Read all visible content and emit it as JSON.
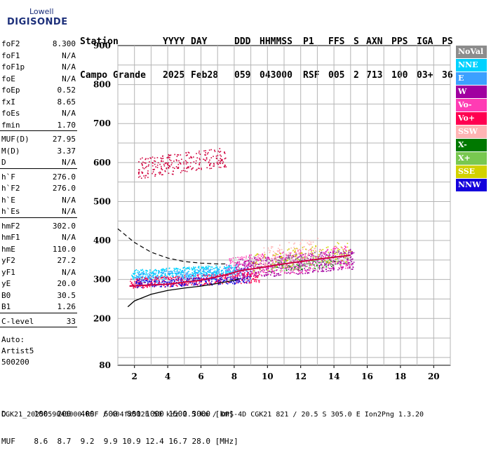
{
  "logo": {
    "line1": "Lowell",
    "line2": "DIGISONDE"
  },
  "header": {
    "labels": [
      "Station",
      "YYYY",
      "DAY",
      "DDD",
      "HHMMSS",
      "P1",
      "FFS",
      "S",
      "AXN",
      "PPS",
      "IGA",
      "PS"
    ],
    "values": [
      "Campo Grande",
      "2025",
      "Feb28",
      "059",
      "043000",
      "RSF",
      "005",
      "2",
      "713",
      "100",
      "03+",
      "36"
    ]
  },
  "params": [
    {
      "k": "foF2",
      "v": "8.300"
    },
    {
      "k": "foF1",
      "v": "N/A"
    },
    {
      "k": "foF1p",
      "v": "N/A"
    },
    {
      "k": "foE",
      "v": "N/A"
    },
    {
      "k": "foEp",
      "v": "0.52"
    },
    {
      "k": "fxI",
      "v": "8.65"
    },
    {
      "k": "foEs",
      "v": "N/A"
    },
    {
      "k": "fmin",
      "v": "1.70"
    },
    {
      "k": "MUF(D)",
      "v": "27.95"
    },
    {
      "k": "M(D)",
      "v": "3.37"
    },
    {
      "k": "D",
      "v": "N/A"
    },
    {
      "k": "h`F",
      "v": "276.0"
    },
    {
      "k": "h`F2",
      "v": "276.0"
    },
    {
      "k": "h`E",
      "v": "N/A"
    },
    {
      "k": "h`Es",
      "v": "N/A"
    },
    {
      "k": "hmF2",
      "v": "302.0"
    },
    {
      "k": "hmF1",
      "v": "N/A"
    },
    {
      "k": "hmE",
      "v": "110.0"
    },
    {
      "k": "yF2",
      "v": "27.2"
    },
    {
      "k": "yF1",
      "v": "N/A"
    },
    {
      "k": "yE",
      "v": "20.0"
    },
    {
      "k": "B0",
      "v": "30.5"
    },
    {
      "k": "B1",
      "v": "1.26"
    },
    {
      "k": "C-level",
      "v": "33"
    }
  ],
  "scaling": {
    "label": "Auto:",
    "name": "Artist5",
    "version": "500200"
  },
  "legend": [
    {
      "name": "NoVal",
      "color": "#8c8c8c"
    },
    {
      "name": "NNE",
      "color": "#00d2ff"
    },
    {
      "name": "E",
      "color": "#3ca0ff"
    },
    {
      "name": "W",
      "color": "#a000a0"
    },
    {
      "name": "Vo-",
      "color": "#ff3cb4"
    },
    {
      "name": "Vo+",
      "color": "#ff0050"
    },
    {
      "name": "SSW",
      "color": "#ffb4b4"
    },
    {
      "name": "X-",
      "color": "#007800"
    },
    {
      "name": "X+",
      "color": "#78c850"
    },
    {
      "name": "SSE",
      "color": "#d2d200"
    },
    {
      "name": "NNW",
      "color": "#1400dc"
    }
  ],
  "muf_table": {
    "d_label": "D",
    "d_values": [
      "100",
      "200",
      "400",
      "600",
      "800",
      "1000",
      "1500",
      "3000"
    ],
    "d_unit": "[km]",
    "muf_label": "MUF",
    "muf_values": [
      "8.6",
      "8.7",
      "9.2",
      "9.9",
      "10.9",
      "12.4",
      "16.7",
      "28.0"
    ],
    "muf_unit": "[MHz]"
  },
  "footer": "CGK21_2025059043000.RSF / 404fx512h 50 kHz 2.5 km / DPS-4D CGK21 821 / 20.5 S 305.0 E Ion2Png 1.3.20",
  "chart_data": {
    "type": "scatter",
    "xlim": [
      1,
      21
    ],
    "ylim": [
      80,
      900
    ],
    "x_ticks": [
      2,
      4,
      6,
      8,
      10,
      12,
      14,
      16,
      18,
      20
    ],
    "y_ticks": [
      80,
      200,
      300,
      400,
      500,
      600,
      700,
      800,
      900
    ],
    "grid": true,
    "legend_placement": "right",
    "clusters": [
      {
        "color": "#00d2ff",
        "x": [
          1.8,
          8.2
        ],
        "y": [
          300,
          340
        ],
        "n": 420
      },
      {
        "color": "#3ca0ff",
        "x": [
          2.0,
          9.0
        ],
        "y": [
          290,
          335
        ],
        "n": 300
      },
      {
        "color": "#a000a0",
        "x": [
          8.0,
          15.2
        ],
        "y": [
          300,
          380
        ],
        "n": 520
      },
      {
        "color": "#ff3cb4",
        "x": [
          7.5,
          15.0
        ],
        "y": [
          300,
          390
        ],
        "n": 360
      },
      {
        "color": "#ff0050",
        "x": [
          1.7,
          9.5
        ],
        "y": [
          278,
          320
        ],
        "n": 380
      },
      {
        "color": "#ffb4b4",
        "x": [
          9.5,
          13.0
        ],
        "y": [
          330,
          410
        ],
        "n": 120
      },
      {
        "color": "#007800",
        "x": [
          10.5,
          14.0
        ],
        "y": [
          320,
          360
        ],
        "n": 40
      },
      {
        "color": "#78c850",
        "x": [
          10.0,
          15.0
        ],
        "y": [
          320,
          370
        ],
        "n": 100
      },
      {
        "color": "#d2d200",
        "x": [
          9.0,
          15.0
        ],
        "y": [
          320,
          400
        ],
        "n": 120
      },
      {
        "color": "#1400dc",
        "x": [
          2.0,
          9.0
        ],
        "y": [
          280,
          310
        ],
        "n": 220
      },
      {
        "color": "#8c8c8c",
        "x": [
          8.0,
          15.0
        ],
        "y": [
          320,
          380
        ],
        "n": 60
      },
      {
        "color": "#d0003c",
        "x": [
          2.2,
          7.5
        ],
        "y": [
          560,
          640
        ],
        "n": 260
      }
    ],
    "profile_line": {
      "x": [
        1.6,
        2.0,
        3.0,
        4.0,
        5.0,
        6.0,
        7.0,
        8.0,
        8.3
      ],
      "y": [
        230,
        245,
        262,
        272,
        278,
        283,
        290,
        298,
        302
      ]
    },
    "dashed_line": {
      "x": [
        1.0,
        2.0,
        3.0,
        4.0,
        5.0,
        6.0,
        7.0,
        7.5
      ],
      "y": [
        430,
        395,
        370,
        355,
        346,
        342,
        340,
        340
      ]
    },
    "trace_line": {
      "x": [
        1.7,
        2.5,
        4.0,
        6.0,
        7.5,
        8.3,
        9.5,
        11.0,
        13.0,
        15.0
      ],
      "y": [
        283,
        285,
        288,
        298,
        312,
        322,
        330,
        340,
        352,
        362
      ]
    }
  }
}
